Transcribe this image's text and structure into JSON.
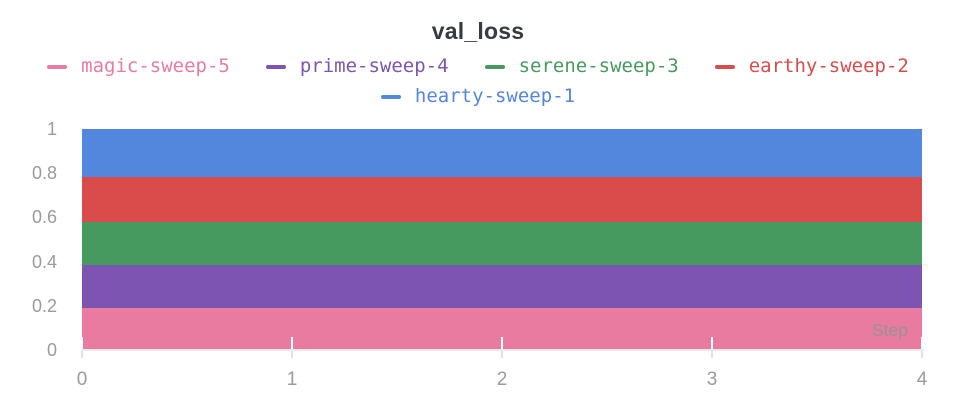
{
  "title": "val_loss",
  "legend": {
    "items": [
      {
        "label": "magic-sweep-5",
        "color": "#E87B9F"
      },
      {
        "label": "prime-sweep-4",
        "color": "#7D54B2"
      },
      {
        "label": "serene-sweep-3",
        "color": "#479A5F"
      },
      {
        "label": "earthy-sweep-2",
        "color": "#DA4C4C"
      },
      {
        "label": "hearty-sweep-1",
        "color": "#5387DD"
      }
    ]
  },
  "chart_data": {
    "type": "area",
    "stacked": true,
    "title": "val_loss",
    "xlabel": "Step",
    "ylabel": "",
    "xlim": [
      0,
      4
    ],
    "ylim": [
      0,
      1
    ],
    "grid": false,
    "legend_position": "top",
    "x": [
      0,
      1,
      2,
      3,
      4
    ],
    "series": [
      {
        "name": "magic-sweep-5",
        "color": "#E87B9F",
        "values": [
          0.19,
          0.19,
          0.19,
          0.19,
          0.19
        ]
      },
      {
        "name": "prime-sweep-4",
        "color": "#7D54B2",
        "values": [
          0.195,
          0.195,
          0.195,
          0.195,
          0.195
        ]
      },
      {
        "name": "serene-sweep-3",
        "color": "#479A5F",
        "values": [
          0.195,
          0.195,
          0.195,
          0.195,
          0.195
        ]
      },
      {
        "name": "earthy-sweep-2",
        "color": "#DA4C4C",
        "values": [
          0.205,
          0.205,
          0.205,
          0.205,
          0.205
        ]
      },
      {
        "name": "hearty-sweep-1",
        "color": "#5387DD",
        "values": [
          0.215,
          0.215,
          0.215,
          0.215,
          0.215
        ]
      }
    ],
    "cumulative_boundaries": [
      0.19,
      0.385,
      0.58,
      0.785,
      1.0
    ],
    "x_ticks": [
      {
        "value": 0,
        "label": "0"
      },
      {
        "value": 1,
        "label": "1"
      },
      {
        "value": 2,
        "label": "2"
      },
      {
        "value": 3,
        "label": "3"
      },
      {
        "value": 4,
        "label": "4"
      }
    ],
    "y_ticks": [
      {
        "value": 0,
        "label": "0"
      },
      {
        "value": 0.2,
        "label": "0.2"
      },
      {
        "value": 0.4,
        "label": "0.4"
      },
      {
        "value": 0.6,
        "label": "0.6"
      },
      {
        "value": 0.8,
        "label": "0.8"
      },
      {
        "value": 1,
        "label": "1"
      }
    ]
  },
  "colors": {
    "title_text": "#363b42",
    "tick_label_text": "#9b9b9b",
    "step_label_text": "#949494",
    "axis_line": "#eaeaea",
    "tick_mark": "#ffffff",
    "background": "#ffffff"
  }
}
